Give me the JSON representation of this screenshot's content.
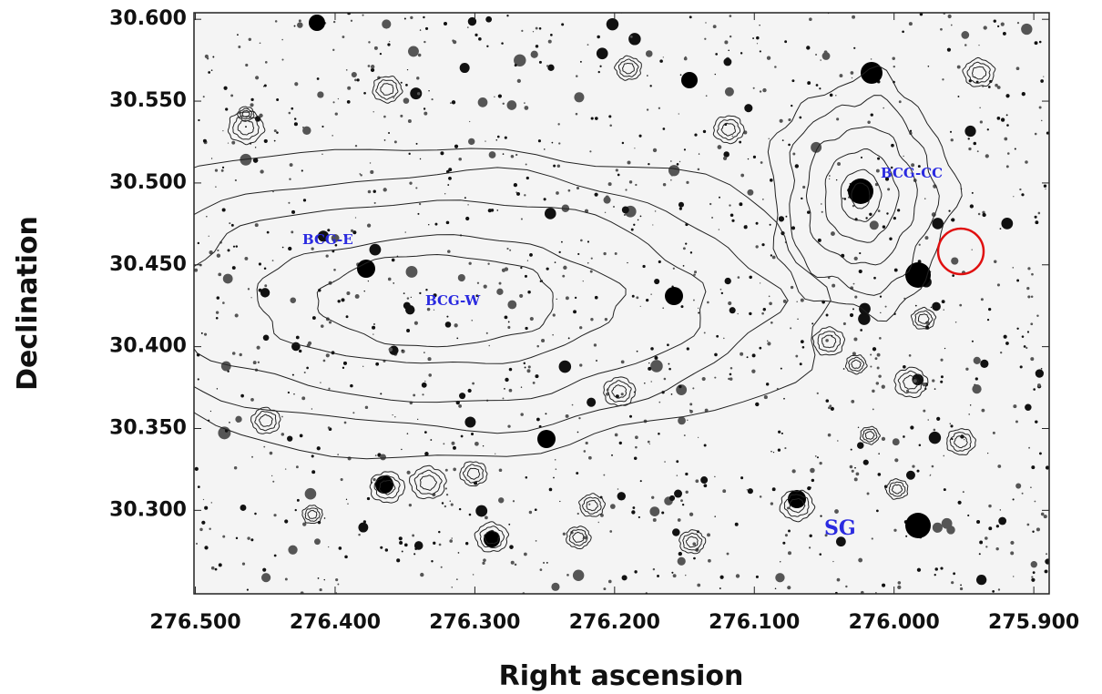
{
  "chart_data": {
    "type": "image",
    "xlabel": "Right ascension",
    "ylabel": "Declination",
    "xlim": [
      276.501,
      275.889
    ],
    "ylim": [
      30.249,
      30.604
    ],
    "xticks": [
      {
        "value": 276.5,
        "label": "276.500"
      },
      {
        "value": 276.4,
        "label": "276.400"
      },
      {
        "value": 276.3,
        "label": "276.300"
      },
      {
        "value": 276.2,
        "label": "276.200"
      },
      {
        "value": 276.1,
        "label": "276.100"
      },
      {
        "value": 276.0,
        "label": "276.000"
      },
      {
        "value": 275.9,
        "label": "275.900"
      }
    ],
    "yticks": [
      {
        "value": 30.3,
        "label": "30.300"
      },
      {
        "value": 30.35,
        "label": "30.350"
      },
      {
        "value": 30.4,
        "label": "30.400"
      },
      {
        "value": 30.45,
        "label": "30.450"
      },
      {
        "value": 30.5,
        "label": "30.500"
      },
      {
        "value": 30.55,
        "label": "30.550"
      },
      {
        "value": 30.6,
        "label": "30.600"
      }
    ],
    "annotations": [
      "BCG-E",
      "BCG-W",
      "BCG-CC",
      "SG"
    ]
  }
}
